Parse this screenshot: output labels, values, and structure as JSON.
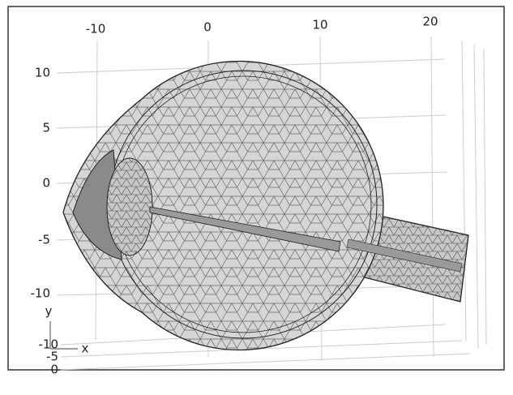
{
  "axes": {
    "x_ticks": [
      "-10",
      "0",
      "10",
      "20"
    ],
    "y_ticks": [
      "10",
      "5",
      "0",
      "-5",
      "-10"
    ],
    "z_ticks": [
      "-10",
      "-5",
      "0"
    ]
  },
  "triad": {
    "y": "y",
    "x": "x"
  }
}
